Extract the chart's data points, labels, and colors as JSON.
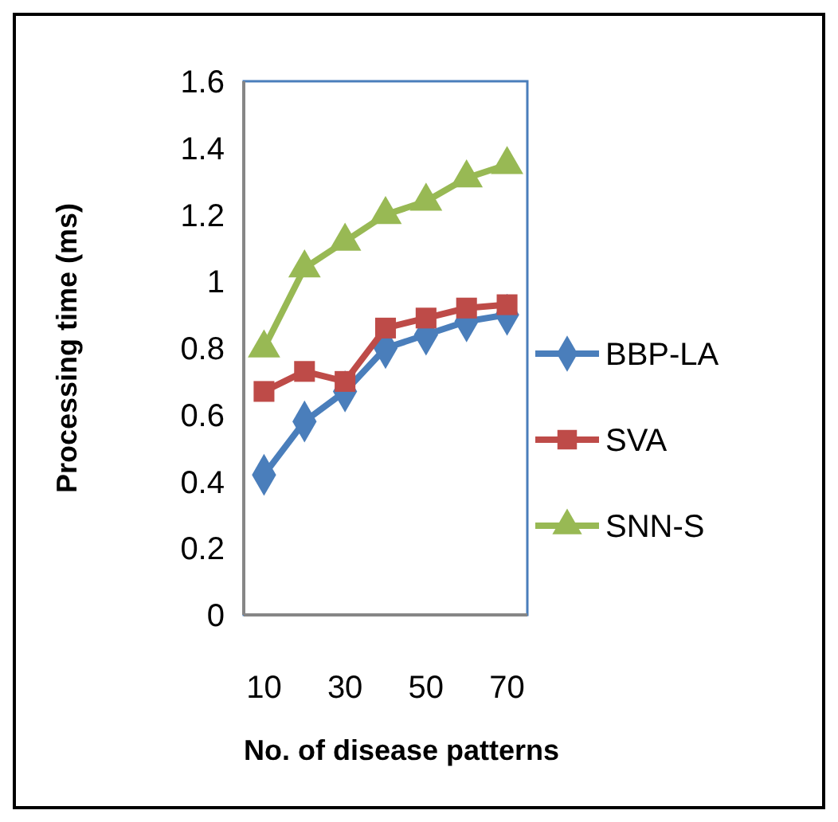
{
  "chart_data": {
    "type": "line",
    "xlabel": "No. of disease patterns",
    "ylabel": "Processing time (ms)",
    "x": [
      10,
      20,
      30,
      40,
      50,
      60,
      70
    ],
    "xlim": [
      5,
      75
    ],
    "xticks": [
      10,
      30,
      50,
      70
    ],
    "ylim": [
      0,
      1.6
    ],
    "yticks": [
      0,
      0.2,
      0.4,
      0.6,
      0.8,
      1,
      1.2,
      1.4,
      1.6
    ],
    "grid": false,
    "legend": "right",
    "series": [
      {
        "name": "BBP-LA",
        "color": "#4a7ebb",
        "marker": "diamond",
        "values": [
          0.42,
          0.58,
          0.67,
          0.8,
          0.84,
          0.88,
          0.9
        ]
      },
      {
        "name": "SVA",
        "color": "#be4b48",
        "marker": "square",
        "values": [
          0.67,
          0.73,
          0.7,
          0.86,
          0.89,
          0.92,
          0.93
        ]
      },
      {
        "name": "SNN-S",
        "color": "#98b954",
        "marker": "triangle",
        "values": [
          0.8,
          1.04,
          1.12,
          1.2,
          1.24,
          1.31,
          1.35
        ]
      }
    ]
  }
}
